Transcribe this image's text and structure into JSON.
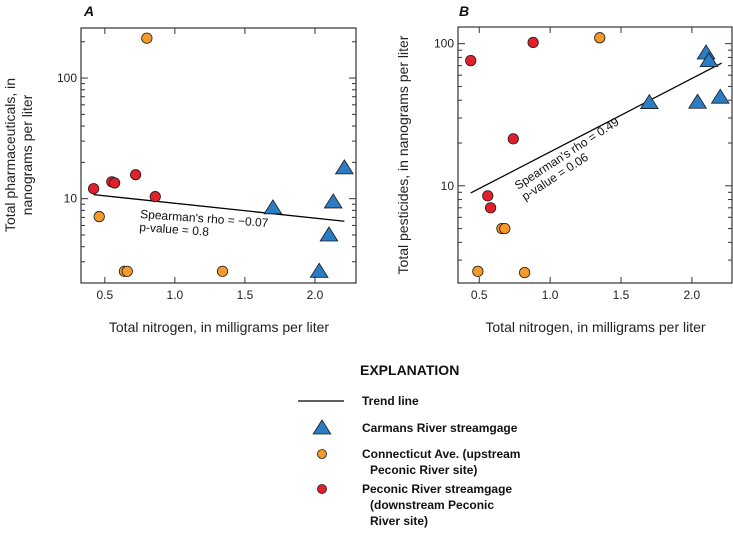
{
  "colors": {
    "carmans": "#2b7cc3",
    "connecticut": "#f59a2a",
    "peconic": "#e0202b",
    "trend": "#000000"
  },
  "chart_data": [
    {
      "type": "scatter",
      "panel_label": "A",
      "xlabel": "Total nitrogen, in milligrams per liter",
      "ylabel_lines": [
        "Total pharmaceuticals, in",
        "nanograms per liter"
      ],
      "xscale": "linear",
      "yscale": "log",
      "xlim": [
        0.33,
        2.3
      ],
      "ylim": [
        2.0,
        260
      ],
      "xticks": [
        0.5,
        1.0,
        1.5,
        2.0
      ],
      "xtick_labels": [
        "0.5",
        "1.0",
        "1.5",
        "2.0"
      ],
      "yticks": [
        10,
        100
      ],
      "ytick_labels": [
        "10",
        "100"
      ],
      "grid": false,
      "annotation": [
        "Spearman's rho = −0.07",
        "p-value = 0.8"
      ],
      "trend": {
        "x": [
          0.42,
          2.21
        ],
        "y": [
          10.8,
          6.5
        ]
      },
      "series": [
        {
          "name": "Carmans River streamgage",
          "key": "carmans",
          "marker": "triangle",
          "x": [
            1.7,
            2.21,
            2.13,
            2.1,
            2.03
          ],
          "y": [
            8.4,
            18,
            9.4,
            5.0,
            2.5
          ]
        },
        {
          "name": "Connecticut Ave. (upstream Peconic River site)",
          "key": "connecticut",
          "marker": "circle",
          "x": [
            0.8,
            0.46,
            0.64,
            0.66,
            1.34
          ],
          "y": [
            214,
            7.1,
            2.5,
            2.5,
            2.5
          ]
        },
        {
          "name": "Peconic River streamgage (downstream Peconic River site)",
          "key": "peconic",
          "marker": "circle",
          "x": [
            0.42,
            0.55,
            0.57,
            0.72,
            0.86
          ],
          "y": [
            12.1,
            13.8,
            13.5,
            15.8,
            10.4
          ]
        }
      ]
    },
    {
      "type": "scatter",
      "panel_label": "B",
      "xlabel": "Total nitrogen, in milligrams per liter",
      "ylabel_lines": [
        "Total pesticides, in nanograms per liter"
      ],
      "xscale": "linear",
      "yscale": "log",
      "xlim": [
        0.35,
        2.29
      ],
      "ylim": [
        2.07,
        131
      ],
      "xticks": [
        0.5,
        1.0,
        1.5,
        2.0
      ],
      "xtick_labels": [
        "0.5",
        "1.0",
        "1.5",
        "2.0"
      ],
      "yticks": [
        10,
        100
      ],
      "ytick_labels": [
        "10",
        "100"
      ],
      "grid": false,
      "annotation": [
        "Spearman's rho = 0.49",
        "p-value = 0.06"
      ],
      "trend": {
        "x": [
          0.44,
          2.21
        ],
        "y": [
          8.9,
          73
        ]
      },
      "series": [
        {
          "name": "Carmans River streamgage",
          "key": "carmans",
          "marker": "triangle",
          "x": [
            1.7,
            2.1,
            2.12,
            2.04,
            2.2
          ],
          "y": [
            38.5,
            86,
            76,
            38.7,
            42
          ]
        },
        {
          "name": "Connecticut Ave. (upstream Peconic River site)",
          "key": "connecticut",
          "marker": "circle",
          "x": [
            1.35,
            0.66,
            0.68,
            0.49,
            0.82
          ],
          "y": [
            110,
            5.0,
            5.0,
            2.5,
            2.45
          ]
        },
        {
          "name": "Peconic River streamgage (downstream Peconic River site)",
          "key": "peconic",
          "marker": "circle",
          "x": [
            0.44,
            0.88,
            0.74,
            0.56,
            0.58
          ],
          "y": [
            76,
            102,
            21.4,
            8.5,
            7.0
          ]
        }
      ]
    }
  ],
  "legend": {
    "title": "EXPLANATION",
    "items": [
      {
        "key": "trend",
        "symbol": "line",
        "lines": [
          "Trend line"
        ]
      },
      {
        "key": "carmans",
        "symbol": "triangle",
        "lines": [
          "Carmans River streamgage"
        ]
      },
      {
        "key": "connecticut",
        "symbol": "circle",
        "lines": [
          "Connecticut Ave. (upstream",
          "Peconic River site)"
        ]
      },
      {
        "key": "peconic",
        "symbol": "circle",
        "lines": [
          "Peconic River streamgage",
          "(downstream Peconic",
          "River site)"
        ]
      }
    ]
  }
}
